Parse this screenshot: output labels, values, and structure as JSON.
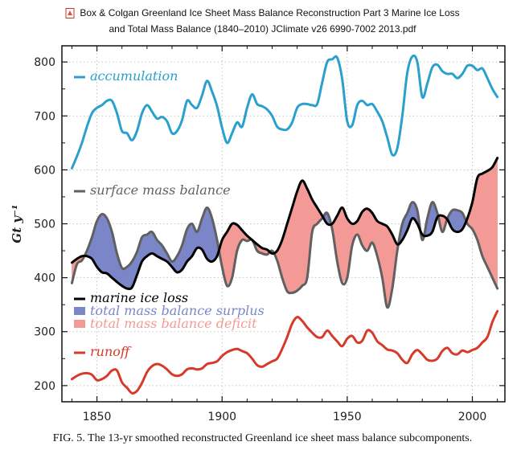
{
  "document": {
    "title_line1": "Box & Colgan Greenland Ice Sheet Mass Balance Reconstruction Part 3 Marine Ice Loss",
    "title_line2": "and Total Mass Balance (1840–2010) JClimate v26 6990-7002 2013.pdf",
    "icon": "pdf-file-icon",
    "caption": "FIG. 5. The 13-yr smoothed reconstructed Greenland ice sheet mass balance subcomponents."
  },
  "chart_data": {
    "type": "line",
    "title": "",
    "xlabel": "",
    "ylabel": "Gt y⁻¹",
    "xlim": [
      1836,
      2013
    ],
    "ylim": [
      170,
      830
    ],
    "xticks": [
      1850,
      1900,
      1950,
      2000
    ],
    "yticks": [
      200,
      300,
      400,
      500,
      600,
      700,
      800
    ],
    "grid": true,
    "legend_placement": "inline labels on left",
    "legend": {
      "accumulation": "accumulation",
      "smb": "surface mass balance",
      "marine": "marine ice loss",
      "surplus": "total mass balance surplus",
      "deficit": "total mass balance deficit",
      "runoff": "runoff"
    },
    "colors": {
      "accumulation": "#2aa0cc",
      "smb": "#606060",
      "marine": "#000000",
      "surplus": "#7b86c9",
      "deficit": "#f39a96",
      "runoff": "#d63a2a"
    },
    "x": [
      1840,
      1842,
      1844,
      1846,
      1848,
      1850,
      1852,
      1854,
      1856,
      1858,
      1860,
      1862,
      1864,
      1866,
      1868,
      1870,
      1872,
      1874,
      1876,
      1878,
      1880,
      1882,
      1884,
      1886,
      1888,
      1890,
      1892,
      1894,
      1896,
      1898,
      1900,
      1902,
      1904,
      1906,
      1908,
      1910,
      1912,
      1914,
      1916,
      1918,
      1920,
      1922,
      1924,
      1926,
      1928,
      1930,
      1932,
      1934,
      1936,
      1938,
      1940,
      1942,
      1944,
      1946,
      1948,
      1950,
      1952,
      1954,
      1956,
      1958,
      1960,
      1962,
      1964,
      1966,
      1968,
      1970,
      1972,
      1974,
      1976,
      1978,
      1980,
      1982,
      1984,
      1986,
      1988,
      1990,
      1992,
      1994,
      1996,
      1998,
      2000,
      2002,
      2004,
      2006,
      2008,
      2010
    ],
    "series": [
      {
        "name": "accumulation",
        "values": [
          603,
          625,
          650,
          680,
          705,
          715,
          720,
          728,
          728,
          705,
          672,
          668,
          655,
          672,
          705,
          720,
          708,
          695,
          698,
          690,
          668,
          672,
          692,
          728,
          720,
          715,
          738,
          765,
          745,
          718,
          678,
          650,
          668,
          688,
          680,
          715,
          740,
          722,
          718,
          712,
          700,
          680,
          675,
          675,
          688,
          715,
          722,
          722,
          720,
          722,
          762,
          800,
          805,
          808,
          768,
          690,
          683,
          720,
          728,
          720,
          722,
          708,
          690,
          660,
          628,
          640,
          700,
          780,
          810,
          800,
          735,
          760,
          790,
          795,
          783,
          778,
          778,
          770,
          778,
          793,
          793,
          785,
          788,
          770,
          750,
          735
        ]
      },
      {
        "name": "surface mass balance",
        "values": [
          390,
          425,
          432,
          450,
          475,
          505,
          518,
          510,
          485,
          445,
          418,
          420,
          430,
          448,
          475,
          480,
          485,
          470,
          460,
          445,
          430,
          440,
          460,
          490,
          500,
          485,
          510,
          530,
          510,
          470,
          420,
          385,
          400,
          450,
          470,
          468,
          470,
          450,
          445,
          443,
          450,
          432,
          400,
          375,
          372,
          376,
          385,
          400,
          485,
          500,
          510,
          520,
          490,
          430,
          390,
          400,
          460,
          480,
          460,
          450,
          465,
          440,
          400,
          345,
          380,
          450,
          500,
          520,
          540,
          525,
          470,
          510,
          540,
          520,
          485,
          510,
          525,
          525,
          520,
          500,
          490,
          470,
          440,
          420,
          400,
          380
        ]
      },
      {
        "name": "marine ice loss",
        "values": [
          428,
          435,
          440,
          440,
          435,
          420,
          410,
          408,
          400,
          392,
          385,
          380,
          382,
          405,
          430,
          440,
          445,
          440,
          435,
          430,
          420,
          410,
          415,
          430,
          440,
          455,
          452,
          435,
          430,
          440,
          470,
          485,
          500,
          498,
          488,
          478,
          470,
          462,
          455,
          452,
          445,
          450,
          470,
          500,
          530,
          560,
          580,
          565,
          545,
          530,
          515,
          500,
          500,
          515,
          530,
          510,
          500,
          505,
          522,
          528,
          520,
          505,
          500,
          495,
          480,
          462,
          470,
          488,
          510,
          500,
          480,
          478,
          485,
          512,
          515,
          508,
          490,
          485,
          490,
          510,
          540,
          585,
          593,
          598,
          605,
          622
        ]
      },
      {
        "name": "runoff",
        "values": [
          212,
          218,
          222,
          223,
          220,
          210,
          212,
          218,
          228,
          228,
          206,
          196,
          186,
          190,
          205,
          225,
          236,
          240,
          237,
          230,
          221,
          218,
          221,
          230,
          232,
          230,
          232,
          240,
          242,
          245,
          255,
          262,
          266,
          268,
          264,
          260,
          250,
          238,
          235,
          240,
          245,
          250,
          268,
          290,
          315,
          327,
          320,
          308,
          298,
          290,
          290,
          302,
          292,
          282,
          273,
          287,
          292,
          280,
          283,
          302,
          298,
          282,
          275,
          267,
          265,
          260,
          248,
          242,
          258,
          266,
          258,
          248,
          246,
          250,
          264,
          270,
          260,
          258,
          265,
          262,
          266,
          270,
          280,
          290,
          318,
          338
        ]
      }
    ]
  }
}
